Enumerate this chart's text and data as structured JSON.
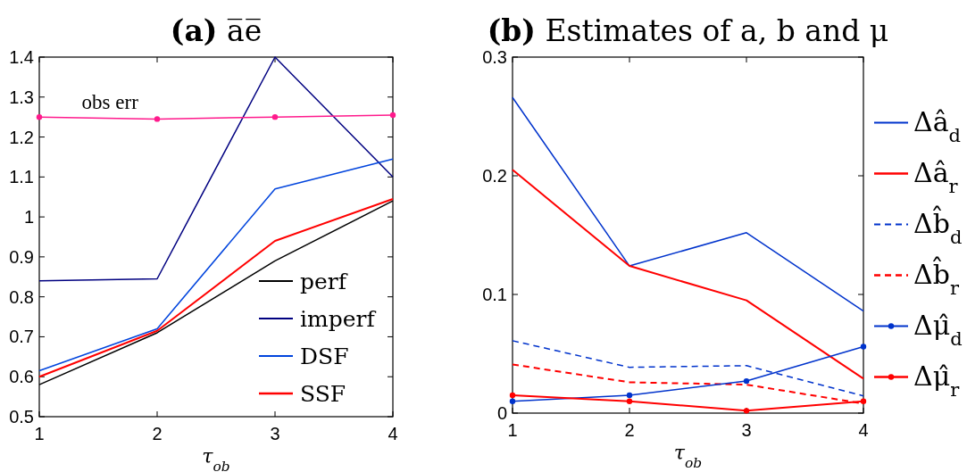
{
  "chart_data": [
    {
      "type": "line",
      "title": "(a) a̅e̅",
      "xlabel": "τ$_{ob}$",
      "x": [
        1,
        2,
        3,
        4
      ],
      "xlim": [
        1,
        4
      ],
      "xticks": [
        1,
        2,
        3,
        4
      ],
      "ylim": [
        0.5,
        1.4
      ],
      "yticks": [
        0.5,
        0.6,
        0.7,
        0.8,
        0.9,
        {
          "value": 1,
          "label": "1"
        },
        1.1,
        1.2,
        1.3,
        1.4
      ],
      "grid": false,
      "legend": "bottom right",
      "line_style": "solid",
      "annotations": [
        "obs err"
      ],
      "series": [
        {
          "name": "perf",
          "color": "#000000",
          "values": [
            0.58,
            0.71,
            0.89,
            1.04
          ]
        },
        {
          "name": "imperf",
          "color": "#000080",
          "values": [
            0.84,
            0.845,
            1.4,
            1.1
          ]
        },
        {
          "name": "DSF",
          "color": "#0044dd",
          "values": [
            0.615,
            0.72,
            1.07,
            1.145
          ]
        },
        {
          "name": "SSF",
          "color": "#ff0000",
          "values": [
            0.6,
            0.715,
            0.94,
            1.045
          ]
        },
        {
          "color": "#ff1a8c",
          "marker": "circle",
          "values": [
            1.25,
            1.245,
            1.25,
            1.255
          ]
        }
      ]
    },
    {
      "type": "line",
      "title": "(b) Estimates of a, b and μ",
      "xlabel": "τ$_{ob}$",
      "x": [
        1,
        2,
        3,
        4
      ],
      "xlim": [
        1,
        4
      ],
      "xticks": [
        1,
        2,
        3,
        4
      ],
      "ylim": [
        0,
        0.3
      ],
      "yticks": [
        0,
        0.1,
        0.2,
        0.3
      ],
      "grid": false,
      "legend": "right",
      "line_style": "solid",
      "series": [
        {
          "name": "Δâ$_{d}$",
          "color": "#0033cc",
          "values": [
            0.266,
            0.124,
            0.152,
            0.086
          ]
        },
        {
          "name": "Δâ$_{r}$",
          "color": "#ff0000",
          "values": [
            0.205,
            0.124,
            0.095,
            0.029
          ]
        },
        {
          "name": "Δb̂$_{d}$",
          "color": "#0033cc",
          "line_style": "dashed",
          "values": [
            0.061,
            0.0386,
            0.04,
            0.0145
          ]
        },
        {
          "name": "Δb̂$_{r}$",
          "color": "#ff0000",
          "line_style": "dashed",
          "values": [
            0.041,
            0.026,
            0.024,
            0.008
          ]
        },
        {
          "name": "Δμ̂$_{d}$",
          "color": "#0033cc",
          "marker": "circle",
          "values": [
            0.01,
            0.015,
            0.027,
            0.056
          ]
        },
        {
          "name": "Δμ̂$_{r}$",
          "color": "#ff0000",
          "marker": "circle",
          "values": [
            0.015,
            0.01,
            0.002,
            0.01
          ]
        }
      ]
    }
  ]
}
